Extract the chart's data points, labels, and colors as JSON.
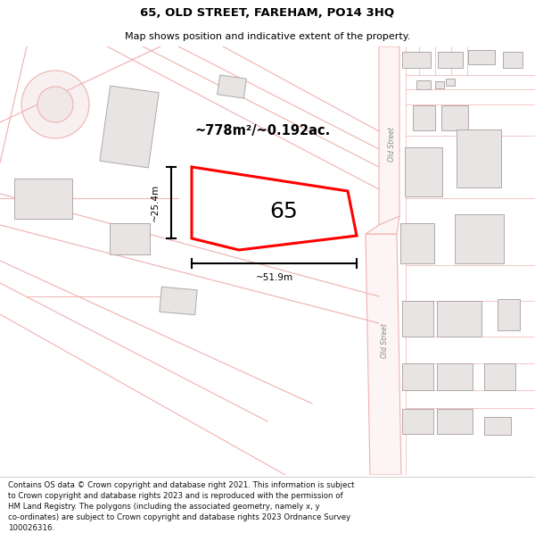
{
  "title": "65, OLD STREET, FAREHAM, PO14 3HQ",
  "subtitle": "Map shows position and indicative extent of the property.",
  "footer": "Contains OS data © Crown copyright and database right 2021. This information is subject to Crown copyright and database rights 2023 and is reproduced with the permission of HM Land Registry. The polygons (including the associated geometry, namely x, y co-ordinates) are subject to Crown copyright and database rights 2023 Ordnance Survey 100026316.",
  "background_color": "#ffffff",
  "plot_color": "#ff0000",
  "road_color": "#f0b0b0",
  "building_color_fill": "#e8e4e4",
  "building_color_edge": "#b0a8a8",
  "dim_color": "#000000",
  "area_label": "~778m²/~0.192ac.",
  "width_label": "~51.9m",
  "height_label": "~25.4m",
  "property_number": "65",
  "street_label": "Old Street"
}
